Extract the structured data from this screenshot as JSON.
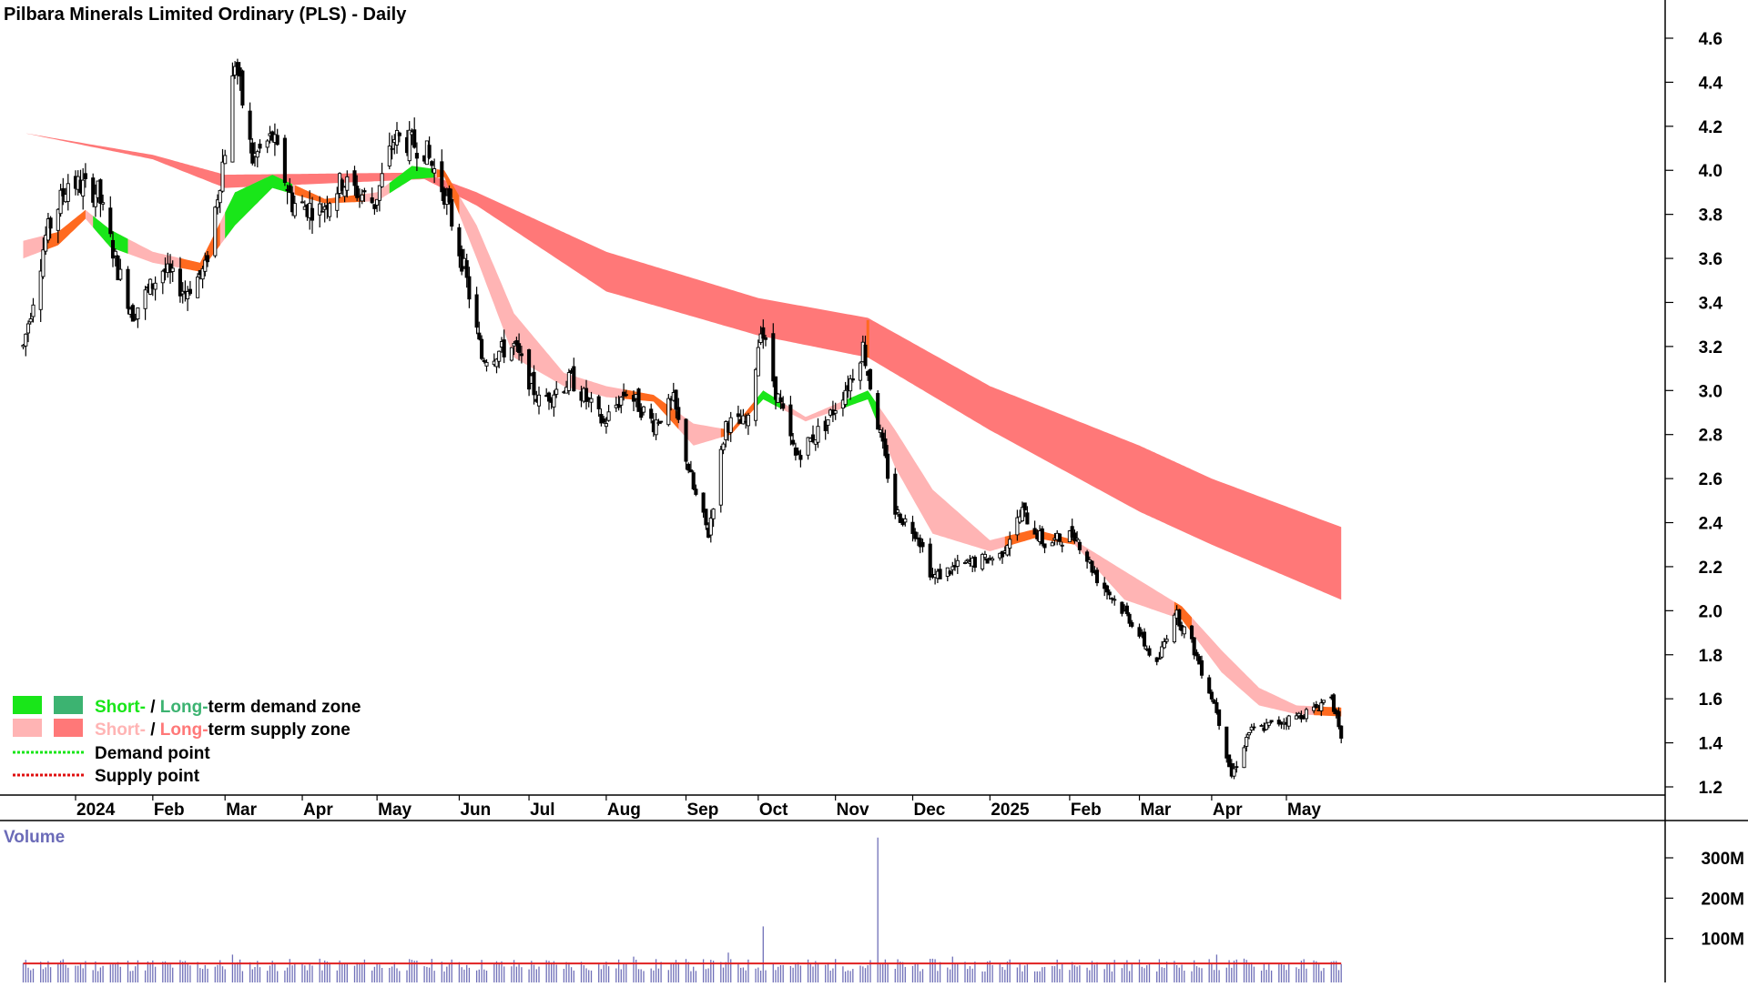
{
  "chart_data": {
    "type": "candlestick",
    "title": "Pilbara Minerals Limited Ordinary (PLS) - Daily",
    "price_axis": {
      "ylim": [
        1.1,
        4.7
      ],
      "ticks": [
        1.2,
        1.4,
        1.6,
        1.8,
        2.0,
        2.2,
        2.4,
        2.6,
        2.8,
        3.0,
        3.2,
        3.4,
        3.6,
        3.8,
        4.0,
        4.2,
        4.4,
        4.6
      ],
      "tick_labels": [
        "1.2",
        "1.4",
        "1.6",
        "1.8",
        "2.0",
        "2.2",
        "2.4",
        "2.6",
        "2.8",
        "3.0",
        "3.2",
        "3.4",
        "3.6",
        "3.8",
        "4.0",
        "4.2",
        "4.4",
        "4.6"
      ]
    },
    "x_axis": {
      "xlim": [
        "2023-12-11",
        "2025-05-31"
      ],
      "month_labels": [
        {
          "date": "2024-01-01",
          "label": "2024"
        },
        {
          "date": "2024-02-01",
          "label": "Feb"
        },
        {
          "date": "2024-03-01",
          "label": "Mar"
        },
        {
          "date": "2024-04-01",
          "label": "Apr"
        },
        {
          "date": "2024-05-01",
          "label": "May"
        },
        {
          "date": "2024-06-03",
          "label": "Jun"
        },
        {
          "date": "2024-07-01",
          "label": "Jul"
        },
        {
          "date": "2024-08-01",
          "label": "Aug"
        },
        {
          "date": "2024-09-02",
          "label": "Sep"
        },
        {
          "date": "2024-10-01",
          "label": "Oct"
        },
        {
          "date": "2024-11-01",
          "label": "Nov"
        },
        {
          "date": "2024-12-02",
          "label": "Dec"
        },
        {
          "date": "2025-01-02",
          "label": "2025"
        },
        {
          "date": "2025-02-03",
          "label": "Feb"
        },
        {
          "date": "2025-03-03",
          "label": "Mar"
        },
        {
          "date": "2025-04-01",
          "label": "Apr"
        },
        {
          "date": "2025-05-01",
          "label": "May"
        }
      ]
    },
    "price_path": [
      {
        "date": "2023-12-11",
        "close": 3.2
      },
      {
        "date": "2023-12-20",
        "close": 3.7
      },
      {
        "date": "2023-12-29",
        "close": 3.95
      },
      {
        "date": "2024-01-10",
        "close": 3.9
      },
      {
        "date": "2024-01-18",
        "close": 3.55
      },
      {
        "date": "2024-01-24",
        "close": 3.35
      },
      {
        "date": "2024-02-05",
        "close": 3.55
      },
      {
        "date": "2024-02-14",
        "close": 3.45
      },
      {
        "date": "2024-02-22",
        "close": 3.55
      },
      {
        "date": "2024-03-01",
        "close": 4.1
      },
      {
        "date": "2024-03-05",
        "close": 4.5
      },
      {
        "date": "2024-03-12",
        "close": 4.05
      },
      {
        "date": "2024-03-20",
        "close": 4.15
      },
      {
        "date": "2024-03-28",
        "close": 3.85
      },
      {
        "date": "2024-04-08",
        "close": 3.82
      },
      {
        "date": "2024-04-17",
        "close": 3.95
      },
      {
        "date": "2024-04-30",
        "close": 3.85
      },
      {
        "date": "2024-05-08",
        "close": 4.15
      },
      {
        "date": "2024-05-20",
        "close": 4.1
      },
      {
        "date": "2024-05-28",
        "close": 3.9
      },
      {
        "date": "2024-06-05",
        "close": 3.55
      },
      {
        "date": "2024-06-12",
        "close": 3.15
      },
      {
        "date": "2024-06-25",
        "close": 3.2
      },
      {
        "date": "2024-07-05",
        "close": 2.95
      },
      {
        "date": "2024-07-18",
        "close": 3.05
      },
      {
        "date": "2024-07-31",
        "close": 2.85
      },
      {
        "date": "2024-08-09",
        "close": 3.0
      },
      {
        "date": "2024-08-20",
        "close": 2.85
      },
      {
        "date": "2024-08-28",
        "close": 2.95
      },
      {
        "date": "2024-09-05",
        "close": 2.55
      },
      {
        "date": "2024-09-11",
        "close": 2.35
      },
      {
        "date": "2024-09-18",
        "close": 2.85
      },
      {
        "date": "2024-09-27",
        "close": 2.85
      },
      {
        "date": "2024-10-02",
        "close": 3.3
      },
      {
        "date": "2024-10-08",
        "close": 3.0
      },
      {
        "date": "2024-10-16",
        "close": 2.7
      },
      {
        "date": "2024-10-28",
        "close": 2.85
      },
      {
        "date": "2024-11-07",
        "close": 3.05
      },
      {
        "date": "2024-11-12",
        "close": 3.2
      },
      {
        "date": "2024-11-18",
        "close": 2.85
      },
      {
        "date": "2024-11-25",
        "close": 2.45
      },
      {
        "date": "2024-12-04",
        "close": 2.35
      },
      {
        "date": "2024-12-10",
        "close": 2.15
      },
      {
        "date": "2024-12-20",
        "close": 2.2
      },
      {
        "date": "2025-01-06",
        "close": 2.25
      },
      {
        "date": "2025-01-15",
        "close": 2.45
      },
      {
        "date": "2025-01-24",
        "close": 2.3
      },
      {
        "date": "2025-02-05",
        "close": 2.35
      },
      {
        "date": "2025-02-14",
        "close": 2.15
      },
      {
        "date": "2025-02-28",
        "close": 1.95
      },
      {
        "date": "2025-03-10",
        "close": 1.75
      },
      {
        "date": "2025-03-17",
        "close": 2.0
      },
      {
        "date": "2025-03-24",
        "close": 1.85
      },
      {
        "date": "2025-04-03",
        "close": 1.55
      },
      {
        "date": "2025-04-09",
        "close": 1.25
      },
      {
        "date": "2025-04-16",
        "close": 1.45
      },
      {
        "date": "2025-04-30",
        "close": 1.5
      },
      {
        "date": "2025-05-12",
        "close": 1.55
      },
      {
        "date": "2025-05-19",
        "close": 1.62
      },
      {
        "date": "2025-05-23",
        "close": 1.4
      }
    ],
    "zones": {
      "long_term": {
        "start_date": "2023-12-11",
        "end_date": "2025-05-23",
        "upper": [
          {
            "date": "2023-12-11",
            "value": 4.17
          },
          {
            "date": "2024-02-01",
            "value": 4.07
          },
          {
            "date": "2024-03-01",
            "value": 3.98
          },
          {
            "date": "2024-05-20",
            "value": 3.99
          },
          {
            "date": "2024-06-10",
            "value": 3.9
          },
          {
            "date": "2024-08-01",
            "value": 3.63
          },
          {
            "date": "2024-10-01",
            "value": 3.42
          },
          {
            "date": "2024-11-14",
            "value": 3.33
          },
          {
            "date": "2025-01-02",
            "value": 3.02
          },
          {
            "date": "2025-03-03",
            "value": 2.75
          },
          {
            "date": "2025-04-01",
            "value": 2.6
          },
          {
            "date": "2025-05-23",
            "value": 2.38
          }
        ],
        "lower": [
          {
            "date": "2023-12-11",
            "value": 4.17
          },
          {
            "date": "2024-02-01",
            "value": 4.05
          },
          {
            "date": "2024-03-01",
            "value": 3.92
          },
          {
            "date": "2024-05-20",
            "value": 3.96
          },
          {
            "date": "2024-06-10",
            "value": 3.84
          },
          {
            "date": "2024-08-01",
            "value": 3.45
          },
          {
            "date": "2024-10-01",
            "value": 3.25
          },
          {
            "date": "2024-11-14",
            "value": 3.15
          },
          {
            "date": "2025-01-02",
            "value": 2.82
          },
          {
            "date": "2025-03-03",
            "value": 2.45
          },
          {
            "date": "2025-04-01",
            "value": 2.3
          },
          {
            "date": "2025-05-23",
            "value": 2.05
          }
        ]
      },
      "short_term": {
        "start_date": "2023-12-11",
        "end_date": "2025-05-23",
        "upper": [
          {
            "date": "2023-12-11",
            "value": 3.68
          },
          {
            "date": "2023-12-25",
            "value": 3.72
          },
          {
            "date": "2024-01-05",
            "value": 3.82
          },
          {
            "date": "2024-01-15",
            "value": 3.73
          },
          {
            "date": "2024-02-01",
            "value": 3.63
          },
          {
            "date": "2024-02-20",
            "value": 3.58
          },
          {
            "date": "2024-03-05",
            "value": 3.9
          },
          {
            "date": "2024-03-20",
            "value": 3.98
          },
          {
            "date": "2024-04-10",
            "value": 3.87
          },
          {
            "date": "2024-05-01",
            "value": 3.9
          },
          {
            "date": "2024-05-15",
            "value": 4.02
          },
          {
            "date": "2024-05-28",
            "value": 4.0
          },
          {
            "date": "2024-06-10",
            "value": 3.75
          },
          {
            "date": "2024-06-25",
            "value": 3.35
          },
          {
            "date": "2024-07-15",
            "value": 3.08
          },
          {
            "date": "2024-08-01",
            "value": 3.02
          },
          {
            "date": "2024-08-20",
            "value": 2.98
          },
          {
            "date": "2024-09-05",
            "value": 2.85
          },
          {
            "date": "2024-09-20",
            "value": 2.82
          },
          {
            "date": "2024-10-03",
            "value": 3.0
          },
          {
            "date": "2024-10-20",
            "value": 2.88
          },
          {
            "date": "2024-11-14",
            "value": 3.0
          },
          {
            "date": "2024-11-25",
            "value": 2.82
          },
          {
            "date": "2024-12-10",
            "value": 2.55
          },
          {
            "date": "2025-01-02",
            "value": 2.32
          },
          {
            "date": "2025-01-20",
            "value": 2.37
          },
          {
            "date": "2025-02-05",
            "value": 2.32
          },
          {
            "date": "2025-02-25",
            "value": 2.18
          },
          {
            "date": "2025-03-20",
            "value": 2.02
          },
          {
            "date": "2025-04-05",
            "value": 1.82
          },
          {
            "date": "2025-04-20",
            "value": 1.65
          },
          {
            "date": "2025-05-05",
            "value": 1.57
          },
          {
            "date": "2025-05-23",
            "value": 1.56
          }
        ],
        "lower": [
          {
            "date": "2023-12-11",
            "value": 3.6
          },
          {
            "date": "2023-12-25",
            "value": 3.66
          },
          {
            "date": "2024-01-05",
            "value": 3.78
          },
          {
            "date": "2024-01-15",
            "value": 3.65
          },
          {
            "date": "2024-02-01",
            "value": 3.58
          },
          {
            "date": "2024-02-20",
            "value": 3.54
          },
          {
            "date": "2024-03-05",
            "value": 3.75
          },
          {
            "date": "2024-03-20",
            "value": 3.92
          },
          {
            "date": "2024-04-10",
            "value": 3.85
          },
          {
            "date": "2024-05-01",
            "value": 3.86
          },
          {
            "date": "2024-05-15",
            "value": 3.96
          },
          {
            "date": "2024-05-28",
            "value": 3.97
          },
          {
            "date": "2024-06-10",
            "value": 3.6
          },
          {
            "date": "2024-06-25",
            "value": 3.15
          },
          {
            "date": "2024-07-15",
            "value": 3.02
          },
          {
            "date": "2024-08-01",
            "value": 2.97
          },
          {
            "date": "2024-08-20",
            "value": 2.95
          },
          {
            "date": "2024-09-05",
            "value": 2.75
          },
          {
            "date": "2024-09-20",
            "value": 2.8
          },
          {
            "date": "2024-10-03",
            "value": 2.96
          },
          {
            "date": "2024-10-20",
            "value": 2.86
          },
          {
            "date": "2024-11-14",
            "value": 2.96
          },
          {
            "date": "2024-11-25",
            "value": 2.65
          },
          {
            "date": "2024-12-10",
            "value": 2.35
          },
          {
            "date": "2025-01-02",
            "value": 2.27
          },
          {
            "date": "2025-01-20",
            "value": 2.33
          },
          {
            "date": "2025-02-05",
            "value": 2.3
          },
          {
            "date": "2025-02-25",
            "value": 2.05
          },
          {
            "date": "2025-03-20",
            "value": 1.96
          },
          {
            "date": "2025-04-05",
            "value": 1.72
          },
          {
            "date": "2025-04-20",
            "value": 1.57
          },
          {
            "date": "2025-05-05",
            "value": 1.53
          },
          {
            "date": "2025-05-23",
            "value": 1.52
          }
        ],
        "colored_segments": [
          {
            "type": "short_demand",
            "start": "2024-01-08",
            "end": "2024-01-22"
          },
          {
            "type": "short_supply_dark",
            "start": "2023-12-20",
            "end": "2024-01-05"
          },
          {
            "type": "short_supply_dark",
            "start": "2024-02-12",
            "end": "2024-02-28"
          },
          {
            "type": "short_demand",
            "start": "2024-03-01",
            "end": "2024-03-28"
          },
          {
            "type": "short_supply_dark",
            "start": "2024-03-29",
            "end": "2024-04-26"
          },
          {
            "type": "short_demand",
            "start": "2024-05-06",
            "end": "2024-05-24"
          },
          {
            "type": "short_supply_dark",
            "start": "2024-05-25",
            "end": "2024-06-03"
          },
          {
            "type": "short_supply_dark",
            "start": "2024-08-08",
            "end": "2024-08-30"
          },
          {
            "type": "short_supply_dark",
            "start": "2024-09-16",
            "end": "2024-09-30"
          },
          {
            "type": "short_demand",
            "start": "2024-09-30",
            "end": "2024-10-10"
          },
          {
            "type": "short_demand",
            "start": "2024-11-04",
            "end": "2024-11-18"
          },
          {
            "type": "short_supply_dark",
            "start": "2025-01-08",
            "end": "2025-02-05"
          },
          {
            "type": "short_supply_dark",
            "start": "2025-03-17",
            "end": "2025-03-24"
          },
          {
            "type": "short_supply_dark",
            "start": "2025-05-12",
            "end": "2025-05-23"
          }
        ]
      }
    },
    "volume_axis": {
      "ylim": [
        0,
        370
      ],
      "unit": "M",
      "ticks": [
        100,
        200,
        300
      ],
      "tick_labels": [
        "100M",
        "200M",
        "300M"
      ]
    },
    "volume_spikes": [
      {
        "date": "2024-03-04",
        "value": 60
      },
      {
        "date": "2024-10-03",
        "value": 130
      },
      {
        "date": "2024-11-18",
        "value": 350
      },
      {
        "date": "2024-09-19",
        "value": 65
      },
      {
        "date": "2024-08-12",
        "value": 55
      },
      {
        "date": "2024-12-18",
        "value": 55
      },
      {
        "date": "2025-04-03",
        "value": 60
      },
      {
        "date": "2025-04-14",
        "value": 50
      }
    ],
    "volume_average_level": 38,
    "colors": {
      "long_supply": "#ff7878",
      "short_supply": "#ffb4b4",
      "short_supply_dark": "#ff6a1f",
      "short_demand": "#19e619",
      "long_demand": "#3cb371",
      "volume_bar": "#7070b8",
      "volume_avg": "#e02020",
      "candle": "#000000"
    }
  },
  "volume_panel": {
    "label": "Volume"
  },
  "legend": {
    "items": [
      {
        "swatches": [
          "#19e619",
          "#3cb371"
        ],
        "prefix": "Short-",
        "separator": " / ",
        "mid": "Long-",
        "suffix": "term demand zone",
        "prefix_color": "#19e619",
        "mid_color": "#3cb371"
      },
      {
        "swatches": [
          "#ffb4b4",
          "#ff7878"
        ],
        "prefix": "Short-",
        "separator": " / ",
        "mid": "Long-",
        "suffix": "term supply zone",
        "prefix_color": "#ffb4b4",
        "mid_color": "#ff7878"
      },
      {
        "line_color": "#19e619",
        "label": "Demand point"
      },
      {
        "line_color": "#e01010",
        "label": "Supply point"
      }
    ]
  }
}
